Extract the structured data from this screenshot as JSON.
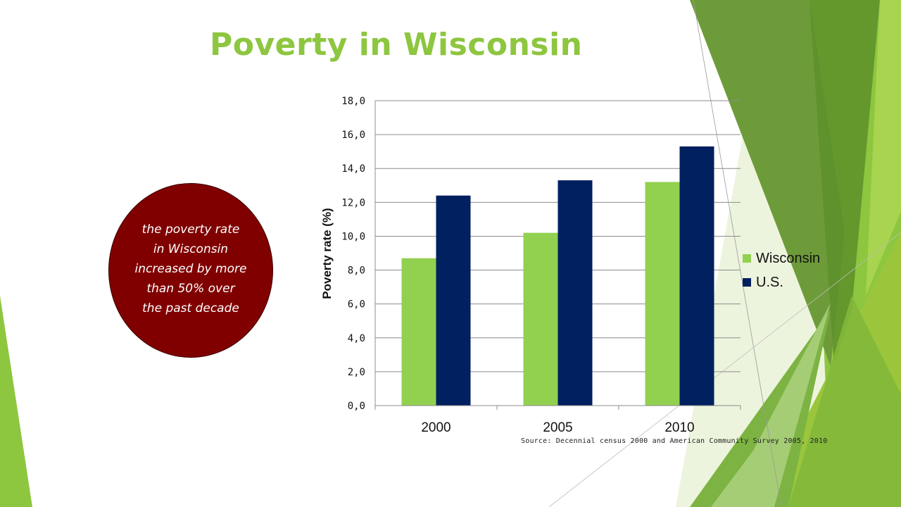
{
  "slide": {
    "title": "Poverty in Wisconsin",
    "callout": "the poverty rate\nin Wisconsin\nincreased by more\nthan 50% over\nthe past decade",
    "source": "Source: Decennial census 2000 and American Community Survey 2005, 2010"
  },
  "colors": {
    "title": "#8dc63f",
    "callout": "#800000",
    "wisconsin": "#92d050",
    "us": "#002060",
    "accent_green": "#7cb342"
  },
  "chart_data": {
    "type": "bar",
    "categories": [
      "2000",
      "2005",
      "2010"
    ],
    "series": [
      {
        "name": "Wisconsin",
        "values": [
          8.7,
          10.2,
          13.2
        ]
      },
      {
        "name": "U.S.",
        "values": [
          12.4,
          13.3,
          15.3
        ]
      }
    ],
    "ylabel": "Poverty rate (%)",
    "ylim": [
      0,
      18
    ],
    "ytick_labels": [
      "0,0",
      "2,0",
      "4,0",
      "6,0",
      "8,0",
      "10,0",
      "12,0",
      "14,0",
      "16,0",
      "18,0"
    ],
    "grid": true,
    "legend": "right"
  }
}
